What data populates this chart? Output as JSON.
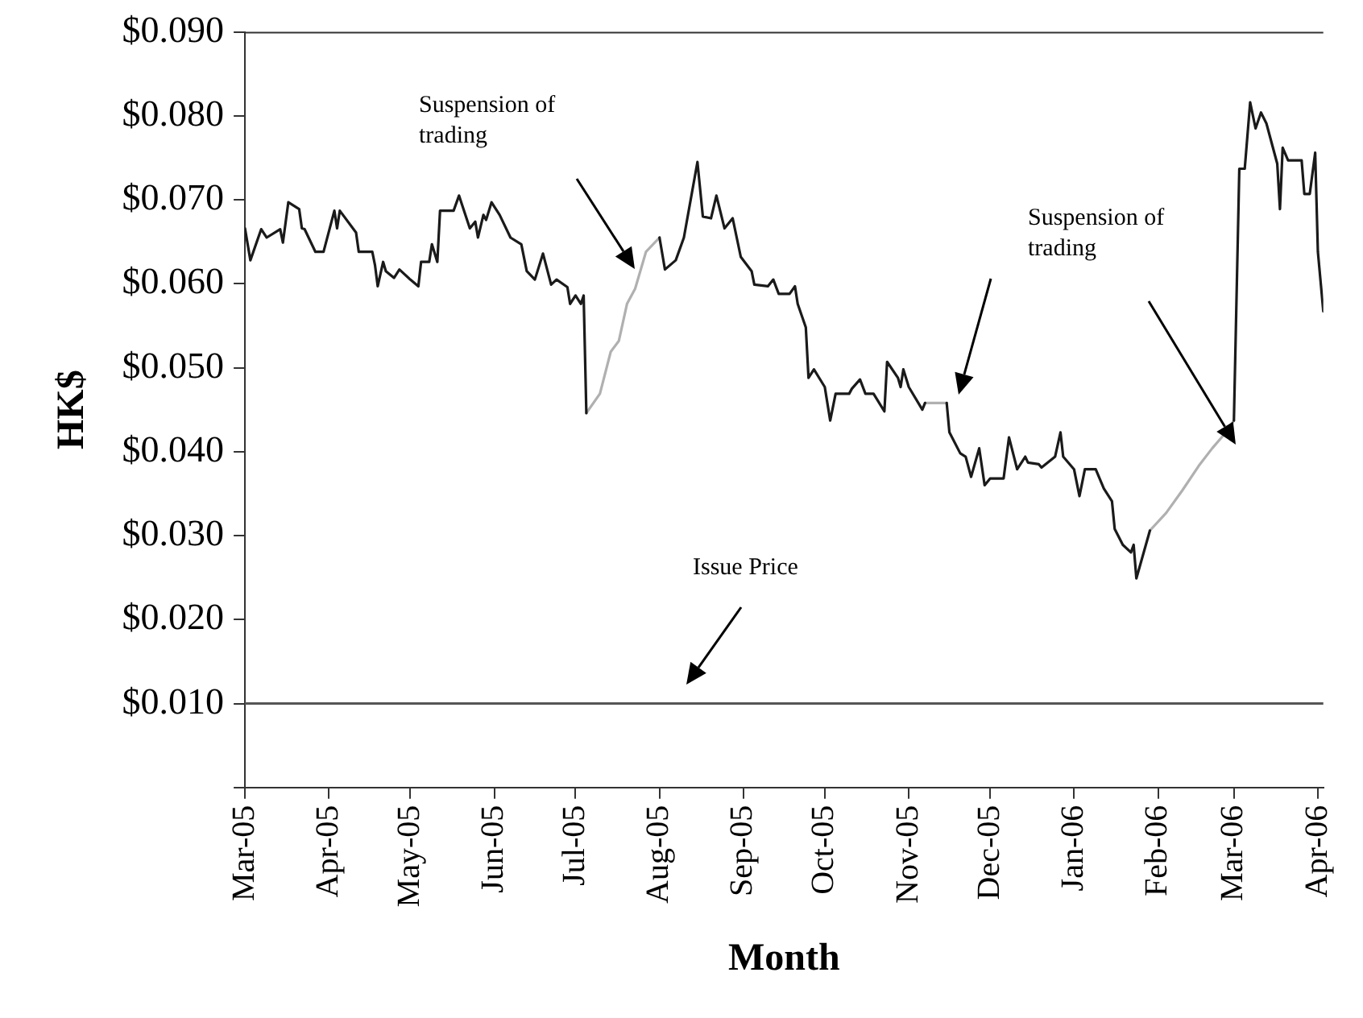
{
  "chart_data": {
    "type": "line",
    "xlabel": "Month",
    "ylabel": "HK$",
    "xlim": [
      "2005-03-01",
      "2006-04-03"
    ],
    "xticks": [
      {
        "value": "2005-03-01",
        "label": "Mar-05"
      },
      {
        "value": "2005-04-01",
        "label": "Apr-05"
      },
      {
        "value": "2005-05-01",
        "label": "May-05"
      },
      {
        "value": "2005-06-01",
        "label": "Jun-05"
      },
      {
        "value": "2005-07-01",
        "label": "Jul-05"
      },
      {
        "value": "2005-08-01",
        "label": "Aug-05"
      },
      {
        "value": "2005-09-01",
        "label": "Sep-05"
      },
      {
        "value": "2005-10-01",
        "label": "Oct-05"
      },
      {
        "value": "2005-11-01",
        "label": "Nov-05"
      },
      {
        "value": "2005-12-01",
        "label": "Dec-05"
      },
      {
        "value": "2006-01-01",
        "label": "Jan-06"
      },
      {
        "value": "2006-02-01",
        "label": "Feb-06"
      },
      {
        "value": "2006-03-01",
        "label": "Mar-06"
      },
      {
        "value": "2006-04-01",
        "label": "Apr-06"
      }
    ],
    "ylim": [
      0,
      0.09
    ],
    "yticks": [
      {
        "value": 0,
        "label": null
      },
      {
        "value": 0.01,
        "label": "$0.010"
      },
      {
        "value": 0.02,
        "label": "$0.020"
      },
      {
        "value": 0.03,
        "label": "$0.030"
      },
      {
        "value": 0.04,
        "label": "$0.040"
      },
      {
        "value": 0.05,
        "label": "$0.050"
      },
      {
        "value": 0.06,
        "label": "$0.060"
      },
      {
        "value": 0.07,
        "label": "$0.070"
      },
      {
        "value": 0.08,
        "label": "$0.080"
      },
      {
        "value": 0.09,
        "label": "$0.090"
      }
    ],
    "grid": false,
    "legend": false,
    "marker": "none",
    "line_style": "solid",
    "ref_lines": [
      {
        "axis": "y",
        "value": 0.01,
        "color": "#555555"
      }
    ],
    "annotations": [
      "Suspension of trading",
      "Suspension of trading",
      "Issue Price"
    ],
    "series": [
      {
        "color": "#1a1a1a",
        "x": [
          "2005-03-01",
          "2005-03-03",
          "2005-03-07",
          "2005-03-09",
          "2005-03-14",
          "2005-03-15",
          "2005-03-17",
          "2005-03-21",
          "2005-03-22",
          "2005-03-23",
          "2005-03-27",
          "2005-03-30",
          "2005-04-03",
          "2005-04-04",
          "2005-04-05",
          "2005-04-11",
          "2005-04-12",
          "2005-04-17",
          "2005-04-18",
          "2005-04-19",
          "2005-04-21",
          "2005-04-22",
          "2005-04-25",
          "2005-04-27",
          "2005-05-01",
          "2005-05-04",
          "2005-05-05",
          "2005-05-08",
          "2005-05-09",
          "2005-05-11",
          "2005-05-12",
          "2005-05-17",
          "2005-05-19",
          "2005-05-23",
          "2005-05-25",
          "2005-05-26",
          "2005-05-28",
          "2005-05-29",
          "2005-05-31",
          "2005-06-03",
          "2005-06-07",
          "2005-06-11",
          "2005-06-13",
          "2005-06-16",
          "2005-06-19",
          "2005-06-22",
          "2005-06-24",
          "2005-06-28",
          "2005-06-29",
          "2005-07-01",
          "2005-07-03",
          "2005-07-04",
          "2005-07-05",
          "2005-07-15",
          "2005-08-01",
          "2005-08-03",
          "2005-08-07",
          "2005-08-10",
          "2005-08-15",
          "2005-08-17",
          "2005-08-20",
          "2005-08-22",
          "2005-08-25",
          "2005-08-28",
          "2005-08-31",
          "2005-09-04",
          "2005-09-05",
          "2005-09-10",
          "2005-09-12",
          "2005-09-14",
          "2005-09-18",
          "2005-09-20",
          "2005-09-21",
          "2005-09-24",
          "2005-09-25",
          "2005-09-27",
          "2005-10-01",
          "2005-10-03",
          "2005-10-05",
          "2005-10-10",
          "2005-10-11",
          "2005-10-14",
          "2005-10-16",
          "2005-10-19",
          "2005-10-23",
          "2005-10-24",
          "2005-10-28",
          "2005-10-29",
          "2005-10-30",
          "2005-11-01",
          "2005-11-06",
          "2005-11-07",
          "2005-11-10",
          "2005-11-15",
          "2005-11-16",
          "2005-11-20",
          "2005-11-22",
          "2005-11-24",
          "2005-11-27",
          "2005-11-29",
          "2005-12-01",
          "2005-12-06",
          "2005-12-08",
          "2005-12-11",
          "2005-12-14",
          "2005-12-15",
          "2005-12-19",
          "2005-12-20",
          "2005-12-25",
          "2005-12-27",
          "2005-12-28",
          "2006-01-01",
          "2006-01-03",
          "2006-01-05",
          "2006-01-09",
          "2006-01-12",
          "2006-01-15",
          "2006-01-16",
          "2006-01-19",
          "2006-01-22",
          "2006-01-23",
          "2006-01-24",
          "2006-01-29",
          "2006-02-15",
          "2006-03-01",
          "2006-03-03",
          "2006-03-05",
          "2006-03-07",
          "2006-03-09",
          "2006-03-11",
          "2006-03-13",
          "2006-03-17",
          "2006-03-18",
          "2006-03-19",
          "2006-03-21",
          "2006-03-26",
          "2006-03-27",
          "2006-03-29",
          "2006-03-31",
          "2006-04-01",
          "2006-04-03"
        ],
        "values": [
          0.0666,
          0.0628,
          0.0665,
          0.0655,
          0.0665,
          0.0649,
          0.0697,
          0.0689,
          0.0666,
          0.0665,
          0.0638,
          0.0638,
          0.0687,
          0.0666,
          0.0687,
          0.0661,
          0.0638,
          0.0638,
          0.0622,
          0.0597,
          0.0626,
          0.0615,
          0.0607,
          0.0617,
          0.0605,
          0.0597,
          0.0626,
          0.0626,
          0.0647,
          0.0626,
          0.0687,
          0.0687,
          0.0705,
          0.0666,
          0.0674,
          0.0655,
          0.0682,
          0.0676,
          0.0697,
          0.0682,
          0.0655,
          0.0647,
          0.0615,
          0.0605,
          0.0636,
          0.0599,
          0.0605,
          0.0596,
          0.0576,
          0.0586,
          0.0576,
          0.0586,
          0.0446,
          null,
          0.0655,
          0.0617,
          0.0628,
          0.0655,
          0.0745,
          0.068,
          0.0678,
          0.0705,
          0.0666,
          0.0678,
          0.0632,
          0.0615,
          0.0599,
          0.0597,
          0.0605,
          0.0588,
          0.0588,
          0.0597,
          0.0576,
          0.0548,
          0.0488,
          0.0498,
          0.0477,
          0.0437,
          0.0469,
          0.0469,
          0.0475,
          0.0486,
          0.0469,
          0.0469,
          0.0448,
          0.0507,
          0.0488,
          0.0477,
          0.0498,
          0.0477,
          0.045,
          0.0458,
          null,
          0.0458,
          0.0423,
          0.0398,
          0.0394,
          0.037,
          0.0404,
          0.036,
          0.0368,
          0.0368,
          0.0417,
          0.0379,
          0.0394,
          0.0387,
          0.0385,
          0.0381,
          0.0394,
          0.0423,
          0.0394,
          0.0379,
          0.0347,
          0.0379,
          0.0379,
          0.0356,
          0.0341,
          0.0308,
          0.0289,
          0.028,
          0.0289,
          0.0249,
          0.0306,
          null,
          0.0437,
          0.0737,
          0.0737,
          0.0816,
          0.0785,
          0.0804,
          0.0791,
          0.0743,
          0.0689,
          0.0762,
          0.0747,
          0.0747,
          0.0707,
          0.0707,
          0.0756,
          0.0638,
          0.0567
        ]
      },
      {
        "color": "#b0b0b0",
        "x": [
          "2005-07-05",
          "2005-07-10",
          "2005-07-14",
          "2005-07-17",
          "2005-07-20",
          "2005-07-23",
          "2005-07-27",
          "2005-08-01",
          "2005-08-05",
          "2005-11-07",
          "2005-11-15",
          "2005-12-01",
          "2006-01-29",
          "2006-02-04",
          "2006-02-10",
          "2006-02-16",
          "2006-02-21",
          "2006-02-25",
          "2006-03-01"
        ],
        "values": [
          0.0446,
          0.0469,
          0.0519,
          0.0532,
          0.0576,
          0.0594,
          0.0638,
          0.0655,
          null,
          0.0458,
          0.0458,
          null,
          0.0306,
          0.0327,
          0.0354,
          0.0383,
          0.0404,
          0.0419,
          0.0437
        ]
      }
    ]
  }
}
